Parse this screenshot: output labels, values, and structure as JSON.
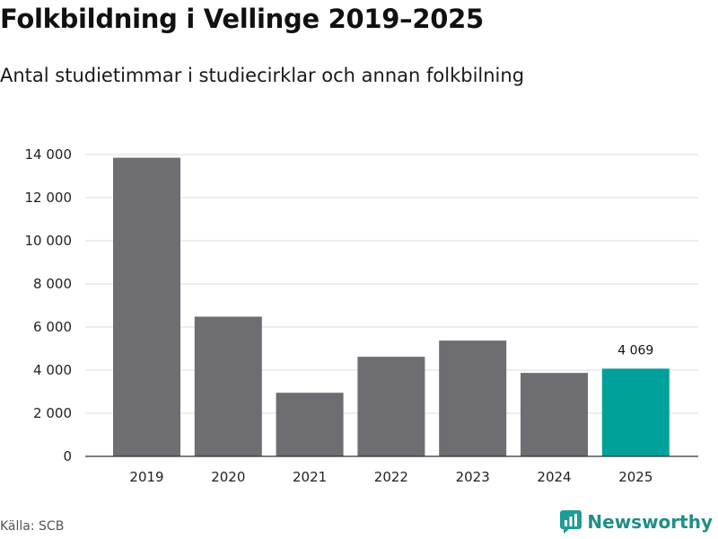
{
  "title": "Folkbildning i Vellinge 2019–2025",
  "subtitle": "Antal studietimmar i studiecirklar och annan folkbilning",
  "source": "Källa: SCB",
  "brand": {
    "name": "Newsworthy",
    "icon": "newsworthy-logo-icon",
    "color": "#1f9c95"
  },
  "chart_data": {
    "type": "bar",
    "title": "Folkbildning i Vellinge 2019–2025",
    "xlabel": "",
    "ylabel": "",
    "categories": [
      "2019",
      "2020",
      "2021",
      "2022",
      "2023",
      "2024",
      "2025"
    ],
    "values": [
      13850,
      6480,
      2950,
      4620,
      5370,
      3870,
      4069
    ],
    "ylim": [
      0,
      14000
    ],
    "yticks": [
      0,
      2000,
      4000,
      6000,
      8000,
      10000,
      12000,
      14000
    ],
    "ytick_labels": [
      "0",
      "2 000",
      "4 000",
      "6 000",
      "8 000",
      "10 000",
      "12 000",
      "14 000"
    ],
    "grid": true,
    "bar_color": "#6e6d72",
    "highlight_color": "#00a19a",
    "highlight_index": 6,
    "data_labels": [
      {
        "index": 6,
        "text": "4 069"
      }
    ]
  }
}
